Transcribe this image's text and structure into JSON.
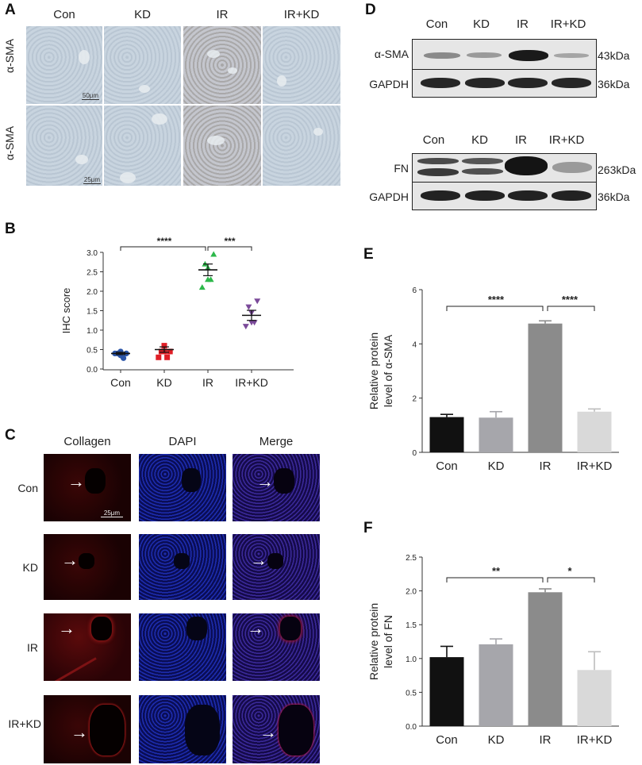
{
  "panels": {
    "A": "A",
    "B": "B",
    "C": "C",
    "D": "D",
    "E": "E",
    "F": "F"
  },
  "panelA": {
    "groups": [
      "Con",
      "KD",
      "IR",
      "IR+KD"
    ],
    "row_labels": [
      "α-SMA",
      "α-SMA"
    ],
    "scalebars": [
      "50μm",
      "25μm"
    ]
  },
  "panelC": {
    "columns": [
      "Collagen",
      "DAPI",
      "Merge"
    ],
    "rows": [
      "Con",
      "KD",
      "IR",
      "IR+KD"
    ],
    "scalebar": "25μm"
  },
  "panelD": {
    "blot1": {
      "groups": [
        "Con",
        "KD",
        "IR",
        "IR+KD"
      ],
      "rows": [
        "α-SMA",
        "GAPDH"
      ],
      "sizes": [
        "43kDa",
        "36kDa"
      ]
    },
    "blot2": {
      "groups": [
        "Con",
        "KD",
        "IR",
        "IR+KD"
      ],
      "rows": [
        "FN",
        "GAPDH"
      ],
      "sizes": [
        "263kDa",
        "36kDa"
      ]
    }
  },
  "colors": {
    "con": "#2b55a8",
    "kd": "#e01e26",
    "ir": "#2db84a",
    "irkd": "#7b4a9a"
  },
  "chart_data": [
    {
      "id": "B",
      "type": "scatter",
      "ylabel": "IHC score",
      "categories": [
        "Con",
        "KD",
        "IR",
        "IR+KD"
      ],
      "ylim": [
        0,
        3.0
      ],
      "yticks": [
        "0.0",
        "0.5",
        "1.0",
        "1.5",
        "2.0",
        "2.5",
        "3.0"
      ],
      "series": [
        {
          "category": "Con",
          "points": [
            0.4,
            0.4,
            0.35,
            0.28,
            0.4,
            0.45
          ],
          "mean": 0.4,
          "sem": 0.03
        },
        {
          "category": "KD",
          "points": [
            0.45,
            0.45,
            0.6,
            0.3,
            0.3,
            0.45
          ],
          "mean": 0.5,
          "sem": 0.07
        },
        {
          "category": "IR",
          "points": [
            2.95,
            2.7,
            2.6,
            2.3,
            2.1,
            2.3
          ],
          "mean": 2.55,
          "sem": 0.15
        },
        {
          "category": "IR+KD",
          "points": [
            1.75,
            1.6,
            1.45,
            1.2,
            1.1,
            1.2
          ],
          "mean": 1.38,
          "sem": 0.13
        }
      ],
      "significance": [
        {
          "from": "Con",
          "to": "IR",
          "label": "****"
        },
        {
          "from": "IR",
          "to": "IR+KD",
          "label": "***"
        }
      ]
    },
    {
      "id": "E",
      "type": "bar",
      "ylabel": [
        "Relative protein",
        "level of α-SMA"
      ],
      "categories": [
        "Con",
        "KD",
        "IR",
        "IR+KD"
      ],
      "values": [
        1.3,
        1.28,
        4.75,
        1.5
      ],
      "errors": [
        0.1,
        0.22,
        0.1,
        0.1
      ],
      "bar_colors": [
        "#111111",
        "#a6a6ab",
        "#8b8b8b",
        "#d9d9d9"
      ],
      "ylim": [
        0,
        6
      ],
      "yticks": [
        "0",
        "2",
        "4",
        "6"
      ],
      "significance": [
        {
          "from": "Con",
          "to": "IR",
          "label": "****"
        },
        {
          "from": "IR",
          "to": "IR+KD",
          "label": "****"
        }
      ]
    },
    {
      "id": "F",
      "type": "bar",
      "ylabel": [
        "Relative protein",
        "level of FN"
      ],
      "categories": [
        "Con",
        "KD",
        "IR",
        "IR+KD"
      ],
      "values": [
        1.02,
        1.21,
        1.98,
        0.83
      ],
      "errors": [
        0.16,
        0.08,
        0.05,
        0.27
      ],
      "bar_colors": [
        "#111111",
        "#a6a6ab",
        "#8b8b8b",
        "#d9d9d9"
      ],
      "ylim": [
        0,
        2.5
      ],
      "yticks": [
        "0.0",
        "0.5",
        "1.0",
        "1.5",
        "2.0",
        "2.5"
      ],
      "significance": [
        {
          "from": "Con",
          "to": "IR",
          "label": "**"
        },
        {
          "from": "IR",
          "to": "IR+KD",
          "label": "*"
        }
      ]
    }
  ]
}
